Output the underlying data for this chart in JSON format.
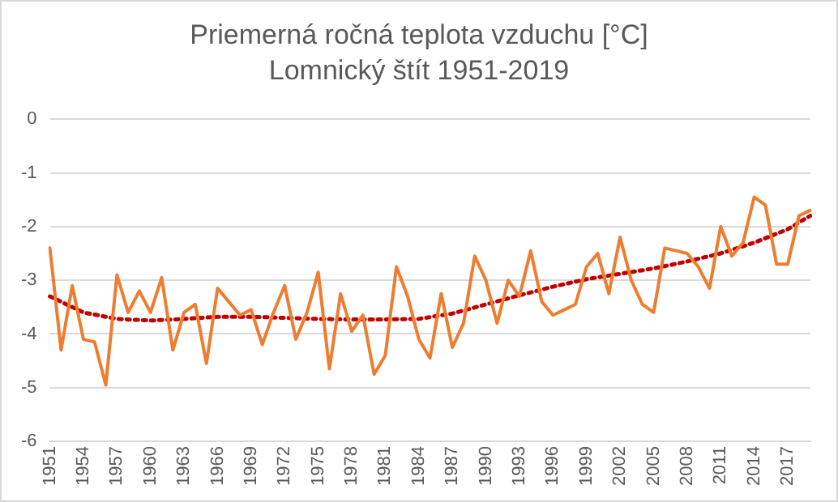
{
  "chart_data": {
    "type": "line",
    "title": "Priemerná ročná teplota vzduchu [°C] Lomnický štít 1951-2019",
    "categories": [
      "1951",
      null,
      null,
      "1954",
      null,
      null,
      "1957",
      null,
      null,
      "1960",
      null,
      null,
      "1963",
      null,
      null,
      "1966",
      null,
      null,
      "1969",
      null,
      null,
      "1972",
      null,
      null,
      "1975",
      null,
      null,
      "1978",
      null,
      null,
      "1981",
      null,
      null,
      "1984",
      null,
      null,
      "1987",
      null,
      null,
      "1990",
      null,
      null,
      "1993",
      null,
      null,
      "1996",
      null,
      null,
      "1999",
      null,
      null,
      "2002",
      null,
      null,
      "2005",
      null,
      null,
      "2008",
      null,
      null,
      "2011",
      null,
      null,
      "2014",
      null,
      null,
      "2017",
      null,
      null
    ],
    "series": [
      {
        "color": "#ed7d31",
        "line_style": "solid",
        "values": [
          -2.4,
          -4.3,
          -3.1,
          -4.1,
          -4.15,
          -4.95,
          -2.9,
          -3.6,
          -3.2,
          -3.6,
          -2.95,
          -4.3,
          -3.6,
          -3.45,
          -4.55,
          -3.15,
          -3.4,
          -3.65,
          -3.55,
          -4.2,
          -3.6,
          -3.1,
          -4.1,
          -3.6,
          -2.85,
          -4.65,
          -3.25,
          -3.95,
          -3.65,
          -4.75,
          -4.4,
          -2.75,
          -3.3,
          -4.1,
          -4.45,
          -3.25,
          -4.25,
          -3.8,
          -2.55,
          -3.0,
          -3.8,
          -3.0,
          -3.3,
          -2.45,
          -3.4,
          -3.65,
          -3.55,
          -3.45,
          -2.75,
          -2.5,
          -3.25,
          -2.2,
          -3.0,
          -3.45,
          -3.6,
          -2.4,
          -2.45,
          -2.5,
          -2.75,
          -3.15,
          -2.0,
          -2.55,
          -2.3,
          -1.45,
          -1.6,
          -2.7,
          -2.7,
          -1.8,
          -1.7
        ]
      },
      {
        "color": "#c00000",
        "line_style": "dotted",
        "values": [
          -3.3,
          null,
          null,
          -3.6,
          null,
          null,
          -3.72,
          null,
          null,
          -3.75,
          null,
          null,
          -3.72,
          null,
          null,
          -3.68,
          null,
          null,
          -3.68,
          null,
          null,
          -3.7,
          null,
          null,
          -3.72,
          null,
          null,
          -3.73,
          null,
          null,
          -3.73,
          null,
          null,
          -3.72,
          null,
          null,
          -3.62,
          null,
          null,
          -3.45,
          null,
          null,
          -3.28,
          null,
          null,
          -3.12,
          null,
          null,
          -2.98,
          null,
          null,
          -2.88,
          null,
          null,
          -2.78,
          null,
          null,
          -2.65,
          null,
          null,
          -2.5,
          null,
          null,
          -2.3,
          null,
          null,
          -2.05,
          null,
          -1.8
        ]
      }
    ],
    "ylim": [
      -6,
      0
    ],
    "yticks": [
      0,
      -1,
      -2,
      -3,
      -4,
      -5,
      -6
    ],
    "grid": "y",
    "legend": false,
    "marker": "none"
  }
}
